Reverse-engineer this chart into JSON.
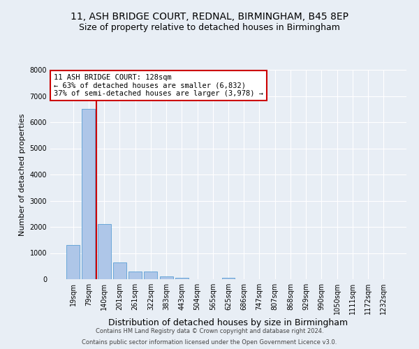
{
  "title_line1": "11, ASH BRIDGE COURT, REDNAL, BIRMINGHAM, B45 8EP",
  "title_line2": "Size of property relative to detached houses in Birmingham",
  "xlabel": "Distribution of detached houses by size in Birmingham",
  "ylabel": "Number of detached properties",
  "footnote1": "Contains HM Land Registry data © Crown copyright and database right 2024.",
  "footnote2": "Contains public sector information licensed under the Open Government Licence v3.0.",
  "categories": [
    "19sqm",
    "79sqm",
    "140sqm",
    "201sqm",
    "261sqm",
    "322sqm",
    "383sqm",
    "443sqm",
    "504sqm",
    "565sqm",
    "625sqm",
    "686sqm",
    "747sqm",
    "807sqm",
    "868sqm",
    "929sqm",
    "990sqm",
    "1050sqm",
    "1111sqm",
    "1172sqm",
    "1232sqm"
  ],
  "values": [
    1300,
    6500,
    2100,
    650,
    290,
    290,
    100,
    65,
    0,
    0,
    65,
    0,
    0,
    0,
    0,
    0,
    0,
    0,
    0,
    0,
    0
  ],
  "bar_color": "#aec6e8",
  "bar_edge_color": "#5a9fd4",
  "vline_pos": 1.5,
  "vline_color": "#cc0000",
  "annotation_text": "11 ASH BRIDGE COURT: 128sqm\n← 63% of detached houses are smaller (6,832)\n37% of semi-detached houses are larger (3,978) →",
  "annotation_box_facecolor": "#ffffff",
  "annotation_box_edgecolor": "#cc0000",
  "annotation_fontsize": 7.5,
  "ylim": [
    0,
    8000
  ],
  "yticks": [
    0,
    1000,
    2000,
    3000,
    4000,
    5000,
    6000,
    7000,
    8000
  ],
  "background_color": "#e8eef5",
  "grid_color": "#ffffff",
  "title_fontsize": 10,
  "subtitle_fontsize": 9,
  "xlabel_fontsize": 9,
  "ylabel_fontsize": 8,
  "tick_fontsize": 7,
  "footnote_fontsize": 6
}
